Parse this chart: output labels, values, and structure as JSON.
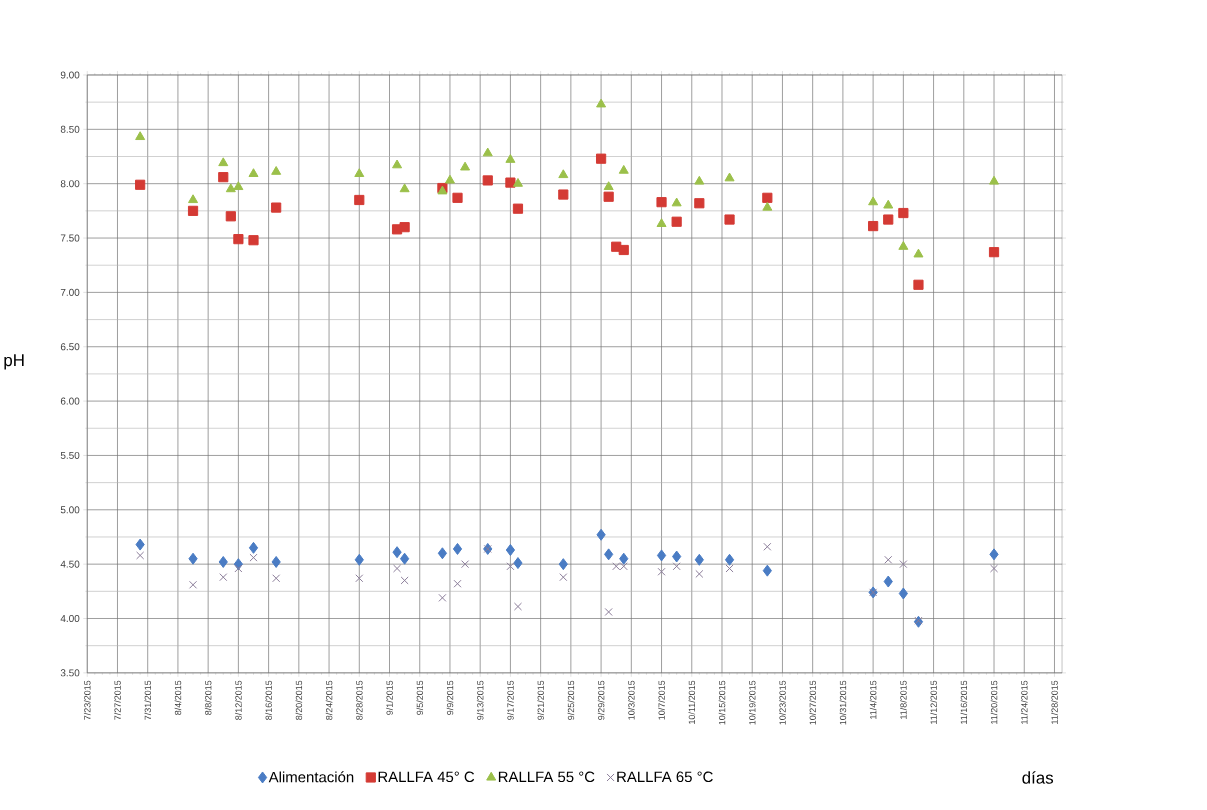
{
  "chart_data": {
    "type": "scatter",
    "xlabel": "días",
    "ylabel": "pH",
    "xlim": [
      "2015-07-23",
      "2015-11-29"
    ],
    "ylim": [
      3.5,
      9
    ],
    "xticks": [
      {
        "value": "2015-07-23",
        "label": "7/23/2015"
      },
      {
        "value": "2015-07-27",
        "label": "7/27/2015"
      },
      {
        "value": "2015-07-31",
        "label": "7/31/2015"
      },
      {
        "value": "2015-08-04",
        "label": "8/4/2015"
      },
      {
        "value": "2015-08-08",
        "label": "8/8/2015"
      },
      {
        "value": "2015-08-12",
        "label": "8/12/2015"
      },
      {
        "value": "2015-08-16",
        "label": "8/16/2015"
      },
      {
        "value": "2015-08-20",
        "label": "8/20/2015"
      },
      {
        "value": "2015-08-24",
        "label": "8/24/2015"
      },
      {
        "value": "2015-08-28",
        "label": "8/28/2015"
      },
      {
        "value": "2015-09-01",
        "label": "9/1/2015"
      },
      {
        "value": "2015-09-05",
        "label": "9/5/2015"
      },
      {
        "value": "2015-09-09",
        "label": "9/9/2015"
      },
      {
        "value": "2015-09-13",
        "label": "9/13/2015"
      },
      {
        "value": "2015-09-17",
        "label": "9/17/2015"
      },
      {
        "value": "2015-09-21",
        "label": "9/21/2015"
      },
      {
        "value": "2015-09-25",
        "label": "9/25/2015"
      },
      {
        "value": "2015-09-29",
        "label": "9/29/2015"
      },
      {
        "value": "2015-10-03",
        "label": "10/3/2015"
      },
      {
        "value": "2015-10-07",
        "label": "10/7/2015"
      },
      {
        "value": "2015-10-11",
        "label": "10/11/2015"
      },
      {
        "value": "2015-10-15",
        "label": "10/15/2015"
      },
      {
        "value": "2015-10-19",
        "label": "10/19/2015"
      },
      {
        "value": "2015-10-23",
        "label": "10/23/2015"
      },
      {
        "value": "2015-10-27",
        "label": "10/27/2015"
      },
      {
        "value": "2015-10-31",
        "label": "10/31/2015"
      },
      {
        "value": "2015-11-04",
        "label": "11/4/2015"
      },
      {
        "value": "2015-11-08",
        "label": "11/8/2015"
      },
      {
        "value": "2015-11-12",
        "label": "11/12/2015"
      },
      {
        "value": "2015-11-16",
        "label": "11/16/2015"
      },
      {
        "value": "2015-11-20",
        "label": "11/20/2015"
      },
      {
        "value": "2015-11-24",
        "label": "11/24/2015"
      },
      {
        "value": "2015-11-28",
        "label": "11/28/2015"
      }
    ],
    "yticks": [
      {
        "value": 3.5,
        "label": "3.50"
      },
      {
        "value": 4,
        "label": "4.00"
      },
      {
        "value": 4.5,
        "label": "4.50"
      },
      {
        "value": 5,
        "label": "5.00"
      },
      {
        "value": 5.5,
        "label": "5.50"
      },
      {
        "value": 6,
        "label": "6.00"
      },
      {
        "value": 6.5,
        "label": "6.50"
      },
      {
        "value": 7,
        "label": "7.00"
      },
      {
        "value": 7.5,
        "label": "7.50"
      },
      {
        "value": 8,
        "label": "8.00"
      },
      {
        "value": 8.5,
        "label": "8.50"
      },
      {
        "value": 9,
        "label": "9.00"
      }
    ],
    "grid": true,
    "legend": "bottom",
    "series": [
      {
        "name": "Alimentación",
        "color": "#4a7cc4",
        "marker": "diamond",
        "x": [
          "2015-07-30",
          "2015-08-06",
          "2015-08-10",
          "2015-08-12",
          "2015-08-14",
          "2015-08-17",
          "2015-08-28",
          "2015-09-02",
          "2015-09-03",
          "2015-09-08",
          "2015-09-10",
          "2015-09-14",
          "2015-09-17",
          "2015-09-18",
          "2015-09-24",
          "2015-09-29",
          "2015-09-30",
          "2015-10-02",
          "2015-10-07",
          "2015-10-09",
          "2015-10-12",
          "2015-10-16",
          "2015-10-21",
          "2015-11-04",
          "2015-11-06",
          "2015-11-08",
          "2015-11-10",
          "2015-11-20"
        ],
        "values": [
          4.68,
          4.55,
          4.52,
          4.5,
          4.65,
          4.52,
          4.54,
          4.61,
          4.55,
          4.6,
          4.64,
          4.64,
          4.63,
          4.51,
          4.5,
          4.77,
          4.59,
          4.55,
          4.58,
          4.57,
          4.54,
          4.54,
          4.44,
          4.24,
          4.34,
          4.23,
          3.97,
          4.59
        ]
      },
      {
        "name": "RALLFA 45° C",
        "color": "#d43a34",
        "marker": "square",
        "x": [
          "2015-07-30",
          "2015-08-06",
          "2015-08-10",
          "2015-08-11",
          "2015-08-12",
          "2015-08-14",
          "2015-08-17",
          "2015-08-28",
          "2015-09-02",
          "2015-09-03",
          "2015-09-08",
          "2015-09-10",
          "2015-09-14",
          "2015-09-17",
          "2015-09-18",
          "2015-09-24",
          "2015-09-29",
          "2015-09-30",
          "2015-10-01",
          "2015-10-02",
          "2015-10-07",
          "2015-10-09",
          "2015-10-12",
          "2015-10-16",
          "2015-10-21",
          "2015-11-04",
          "2015-11-06",
          "2015-11-08",
          "2015-11-10",
          "2015-11-20"
        ],
        "values": [
          7.99,
          7.75,
          8.06,
          7.7,
          7.49,
          7.48,
          7.78,
          7.85,
          7.58,
          7.6,
          7.96,
          7.87,
          8.03,
          8.01,
          7.77,
          7.9,
          8.23,
          7.88,
          7.42,
          7.39,
          7.83,
          7.65,
          7.82,
          7.67,
          7.87,
          7.61,
          7.67,
          7.73,
          7.07,
          7.37
        ]
      },
      {
        "name": "RALLFA 55 °C",
        "color": "#9bc04a",
        "marker": "triangle",
        "x": [
          "2015-07-30",
          "2015-08-06",
          "2015-08-10",
          "2015-08-11",
          "2015-08-12",
          "2015-08-14",
          "2015-08-17",
          "2015-08-28",
          "2015-09-02",
          "2015-09-03",
          "2015-09-08",
          "2015-09-09",
          "2015-09-11",
          "2015-09-14",
          "2015-09-17",
          "2015-09-18",
          "2015-09-24",
          "2015-09-29",
          "2015-09-30",
          "2015-10-02",
          "2015-10-07",
          "2015-10-09",
          "2015-10-12",
          "2015-10-16",
          "2015-10-21",
          "2015-11-04",
          "2015-11-06",
          "2015-11-08",
          "2015-11-10",
          "2015-11-20"
        ],
        "values": [
          8.43,
          7.85,
          8.19,
          7.95,
          7.97,
          8.09,
          8.11,
          8.09,
          8.17,
          7.95,
          7.93,
          8.03,
          8.15,
          8.28,
          8.22,
          8.0,
          8.08,
          8.73,
          7.97,
          8.12,
          7.63,
          7.82,
          8.02,
          8.05,
          7.78,
          7.83,
          7.8,
          7.42,
          7.35,
          8.02
        ]
      },
      {
        "name": "RALLFA 65 °C",
        "color": "#8a7c98",
        "marker": "cross",
        "x": [
          "2015-07-30",
          "2015-08-06",
          "2015-08-10",
          "2015-08-12",
          "2015-08-14",
          "2015-08-17",
          "2015-08-28",
          "2015-09-02",
          "2015-09-03",
          "2015-09-08",
          "2015-09-10",
          "2015-09-11",
          "2015-09-14",
          "2015-09-17",
          "2015-09-18",
          "2015-09-24",
          "2015-09-30",
          "2015-10-01",
          "2015-10-02",
          "2015-10-07",
          "2015-10-09",
          "2015-10-12",
          "2015-10-16",
          "2015-10-21",
          "2015-11-04",
          "2015-11-06",
          "2015-11-08",
          "2015-11-10",
          "2015-11-20"
        ],
        "values": [
          4.58,
          4.31,
          4.38,
          4.46,
          4.56,
          4.37,
          4.37,
          4.46,
          4.35,
          4.19,
          4.32,
          4.5,
          4.64,
          4.48,
          4.11,
          4.38,
          4.06,
          4.48,
          4.48,
          4.43,
          4.48,
          4.41,
          4.46,
          4.66,
          4.24,
          4.54,
          4.5,
          3.98,
          4.46
        ]
      }
    ]
  }
}
